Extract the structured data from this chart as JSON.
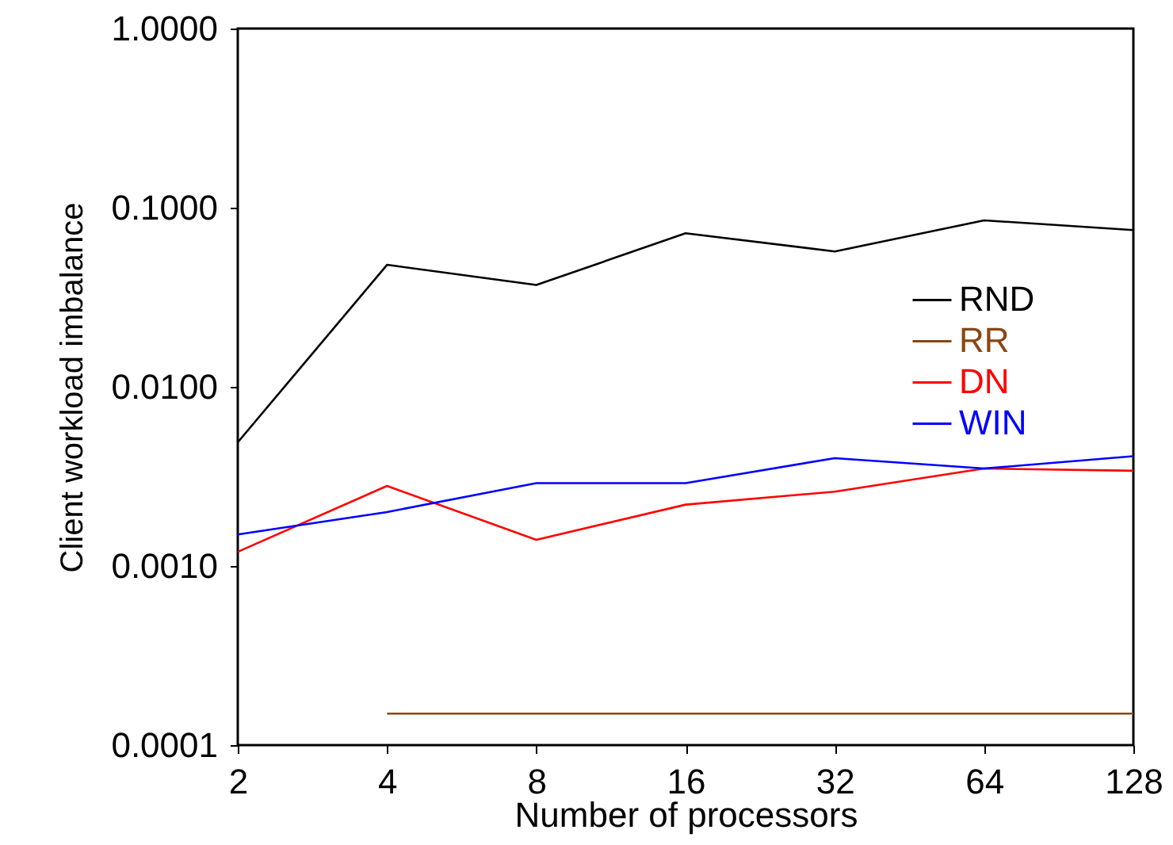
{
  "chart_data": {
    "type": "line",
    "xlabel": "Number of processors",
    "ylabel": "Client workload imbalance",
    "x": [
      2,
      4,
      8,
      16,
      32,
      64,
      128
    ],
    "series": [
      {
        "name": "RND",
        "color": "#000000",
        "values": [
          0.0049,
          0.048,
          0.037,
          0.072,
          0.057,
          0.085,
          0.075
        ]
      },
      {
        "name": "RR",
        "color": "#8b4513",
        "values": [
          null,
          0.00015,
          0.00015,
          0.00015,
          0.00015,
          0.00015,
          0.00015
        ]
      },
      {
        "name": "DN",
        "color": "#ff0000",
        "values": [
          0.0012,
          0.0028,
          0.0014,
          0.0022,
          0.0026,
          0.0035,
          0.0034
        ]
      },
      {
        "name": "WIN",
        "color": "#0000ff",
        "values": [
          0.0015,
          0.002,
          0.0029,
          0.0029,
          0.004,
          0.0035,
          0.0041
        ]
      }
    ],
    "xlim": [
      2,
      128
    ],
    "xticks": [
      2,
      4,
      8,
      16,
      32,
      64,
      128
    ],
    "ylim": [
      0.0001,
      1
    ],
    "yticks": [
      {
        "value": 0.0001,
        "label": "0.0001"
      },
      {
        "value": 0.001,
        "label": "0.0010"
      },
      {
        "value": 0.01,
        "label": "0.0100"
      },
      {
        "value": 0.1,
        "label": "0.1000"
      },
      {
        "value": 1,
        "label": "1.0000"
      }
    ],
    "log": "xy",
    "grid": false,
    "legend": "right",
    "line_style": "solid",
    "marker": "none"
  }
}
